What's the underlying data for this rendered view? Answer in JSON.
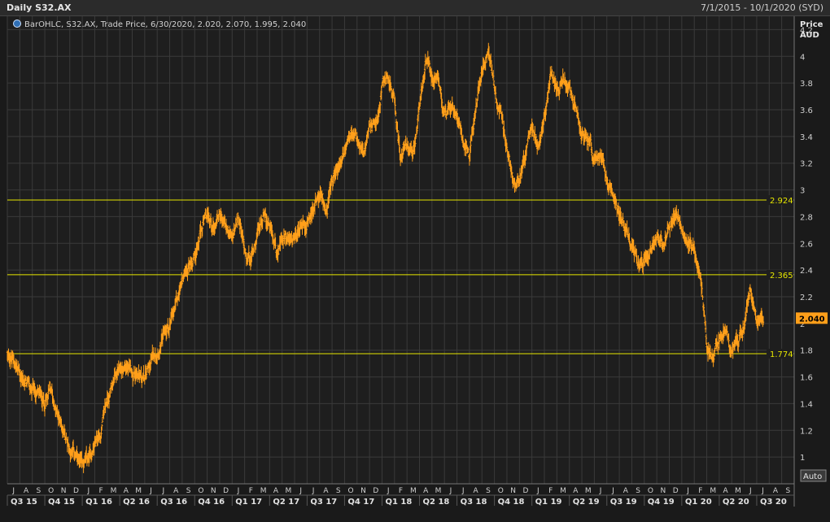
{
  "header": {
    "title": "Daily S32.AX",
    "date_range": "7/1/2015 - 10/1/2020 (SYD)"
  },
  "legend": {
    "icon": "globe-icon",
    "text": "BarOHLC, S32.AX, Trade Price, 6/30/2020, 2.020, 2.070, 1.995, 2.040"
  },
  "axis": {
    "price_label": "Price",
    "currency_label": "AUD",
    "auto_label": "Auto"
  },
  "colors": {
    "series": "#ff9f1a",
    "level_line": "#e6e600",
    "last_badge": "#ff9f1a",
    "grid": "#3a3a3a",
    "plot_bg": "#1e1e1e"
  },
  "chart_data": {
    "type": "bar",
    "subtype": "ohlc",
    "series_name": "S32.AX",
    "x_start": "2015-07",
    "x_end": "2020-09",
    "ylim": [
      0.8,
      4.3
    ],
    "y_ticks": [
      "1",
      "1.2",
      "1.4",
      "1.6",
      "1.8",
      "2",
      "2.2",
      "2.4",
      "2.6",
      "2.8",
      "3",
      "3.2",
      "3.4",
      "3.6",
      "3.8",
      "4",
      "4.2"
    ],
    "month_labels": [
      "J",
      "A",
      "S",
      "O",
      "N",
      "D",
      "J",
      "F",
      "M",
      "A",
      "M",
      "J",
      "J",
      "A",
      "S",
      "O",
      "N",
      "D",
      "J",
      "F",
      "M",
      "A",
      "M",
      "J",
      "J",
      "A",
      "S",
      "O",
      "N",
      "D",
      "J",
      "F",
      "M",
      "A",
      "M",
      "J",
      "J",
      "A",
      "S",
      "O",
      "N",
      "D",
      "J",
      "F",
      "M",
      "A",
      "M",
      "J",
      "J",
      "A",
      "S",
      "O",
      "N",
      "D",
      "J",
      "F",
      "M",
      "A",
      "M",
      "J",
      "J",
      "A",
      "S"
    ],
    "quarters": [
      {
        "label": "Q3 15",
        "start": 0,
        "end": 3
      },
      {
        "label": "Q4 15",
        "start": 3,
        "end": 6
      },
      {
        "label": "Q1 16",
        "start": 6,
        "end": 9
      },
      {
        "label": "Q2 16",
        "start": 9,
        "end": 12
      },
      {
        "label": "Q3 16",
        "start": 12,
        "end": 15
      },
      {
        "label": "Q4 16",
        "start": 15,
        "end": 18
      },
      {
        "label": "Q1 17",
        "start": 18,
        "end": 21
      },
      {
        "label": "Q2 17",
        "start": 21,
        "end": 24
      },
      {
        "label": "Q3 17",
        "start": 24,
        "end": 27
      },
      {
        "label": "Q4 17",
        "start": 27,
        "end": 30
      },
      {
        "label": "Q1 18",
        "start": 30,
        "end": 33
      },
      {
        "label": "Q2 18",
        "start": 33,
        "end": 36
      },
      {
        "label": "Q3 18",
        "start": 36,
        "end": 39
      },
      {
        "label": "Q4 18",
        "start": 39,
        "end": 42
      },
      {
        "label": "Q1 19",
        "start": 42,
        "end": 45
      },
      {
        "label": "Q2 19",
        "start": 45,
        "end": 48
      },
      {
        "label": "Q3 19",
        "start": 48,
        "end": 51
      },
      {
        "label": "Q4 19",
        "start": 51,
        "end": 54
      },
      {
        "label": "Q1 20",
        "start": 54,
        "end": 57
      },
      {
        "label": "Q2 20",
        "start": 57,
        "end": 60
      },
      {
        "label": "Q3 20",
        "start": 60,
        "end": 63
      }
    ],
    "price_path": [
      [
        0,
        1.76
      ],
      [
        0.5,
        1.72
      ],
      [
        1,
        1.62
      ],
      [
        1.5,
        1.55
      ],
      [
        2,
        1.48
      ],
      [
        2.5,
        1.45
      ],
      [
        3,
        1.42
      ],
      [
        3.5,
        1.47
      ],
      [
        4,
        1.3
      ],
      [
        4.5,
        1.2
      ],
      [
        5,
        1.08
      ],
      [
        5.5,
        1.0
      ],
      [
        6,
        0.9
      ],
      [
        6.5,
        0.96
      ],
      [
        7,
        1.1
      ],
      [
        7.5,
        1.2
      ],
      [
        8,
        1.42
      ],
      [
        8.5,
        1.58
      ],
      [
        9,
        1.62
      ],
      [
        9.5,
        1.68
      ],
      [
        10,
        1.6
      ],
      [
        10.5,
        1.65
      ],
      [
        11,
        1.58
      ],
      [
        11.5,
        1.7
      ],
      [
        12,
        1.82
      ],
      [
        12.5,
        1.9
      ],
      [
        13,
        1.98
      ],
      [
        13.5,
        2.1
      ],
      [
        14,
        2.3
      ],
      [
        14.5,
        2.45
      ],
      [
        15,
        2.55
      ],
      [
        15.5,
        2.68
      ],
      [
        16,
        2.78
      ],
      [
        16.5,
        2.7
      ],
      [
        17,
        2.85
      ],
      [
        17.5,
        2.72
      ],
      [
        18,
        2.6
      ],
      [
        18.5,
        2.75
      ],
      [
        19,
        2.55
      ],
      [
        19.5,
        2.5
      ],
      [
        20,
        2.68
      ],
      [
        20.5,
        2.85
      ],
      [
        21,
        2.65
      ],
      [
        21.5,
        2.55
      ],
      [
        22,
        2.6
      ],
      [
        22.5,
        2.62
      ],
      [
        23,
        2.55
      ],
      [
        23.5,
        2.7
      ],
      [
        24,
        2.78
      ],
      [
        24.5,
        2.85
      ],
      [
        25,
        2.95
      ],
      [
        25.5,
        2.85
      ],
      [
        26,
        3.05
      ],
      [
        26.5,
        3.15
      ],
      [
        27,
        3.3
      ],
      [
        27.5,
        3.45
      ],
      [
        28,
        3.35
      ],
      [
        28.5,
        3.2
      ],
      [
        29,
        3.4
      ],
      [
        29.5,
        3.5
      ],
      [
        30,
        3.75
      ],
      [
        30.5,
        3.85
      ],
      [
        31,
        3.65
      ],
      [
        31.5,
        3.25
      ],
      [
        32,
        3.35
      ],
      [
        32.5,
        3.3
      ],
      [
        33,
        3.6
      ],
      [
        33.5,
        3.95
      ],
      [
        34,
        3.85
      ],
      [
        34.5,
        3.75
      ],
      [
        35,
        3.55
      ],
      [
        35.5,
        3.62
      ],
      [
        36,
        3.6
      ],
      [
        36.5,
        3.45
      ],
      [
        37,
        3.3
      ],
      [
        37.5,
        3.6
      ],
      [
        38,
        3.92
      ],
      [
        38.5,
        4.08
      ],
      [
        39,
        3.75
      ],
      [
        39.5,
        3.55
      ],
      [
        40,
        3.25
      ],
      [
        40.5,
        3.05
      ],
      [
        41,
        3.15
      ],
      [
        41.5,
        3.3
      ],
      [
        42,
        3.45
      ],
      [
        42.5,
        3.3
      ],
      [
        43,
        3.5
      ],
      [
        43.5,
        3.85
      ],
      [
        44,
        3.78
      ],
      [
        44.5,
        3.82
      ],
      [
        45,
        3.72
      ],
      [
        45.5,
        3.55
      ],
      [
        46,
        3.4
      ],
      [
        46.5,
        3.3
      ],
      [
        47,
        3.2
      ],
      [
        47.5,
        3.2
      ],
      [
        48,
        3.1
      ],
      [
        48.5,
        3.0
      ],
      [
        49,
        2.85
      ],
      [
        49.5,
        2.7
      ],
      [
        50,
        2.55
      ],
      [
        50.5,
        2.45
      ],
      [
        51,
        2.5
      ],
      [
        51.5,
        2.55
      ],
      [
        52,
        2.65
      ],
      [
        52.5,
        2.6
      ],
      [
        53,
        2.75
      ],
      [
        53.5,
        2.85
      ],
      [
        54,
        2.78
      ],
      [
        54.5,
        2.65
      ],
      [
        55,
        2.55
      ],
      [
        55.5,
        2.3
      ],
      [
        56,
        1.85
      ],
      [
        56.5,
        1.72
      ],
      [
        57,
        1.88
      ],
      [
        57.5,
        1.95
      ],
      [
        58,
        1.82
      ],
      [
        58.5,
        1.88
      ],
      [
        59,
        2.0
      ],
      [
        59.5,
        2.28
      ],
      [
        60,
        2.06
      ],
      [
        60.5,
        2.04
      ]
    ],
    "levels": [
      {
        "value": 2.924,
        "label": "2.924"
      },
      {
        "value": 2.365,
        "label": "2.365"
      },
      {
        "value": 1.774,
        "label": "1.774"
      }
    ],
    "last_value": 2.04,
    "last_label": "2.040"
  }
}
